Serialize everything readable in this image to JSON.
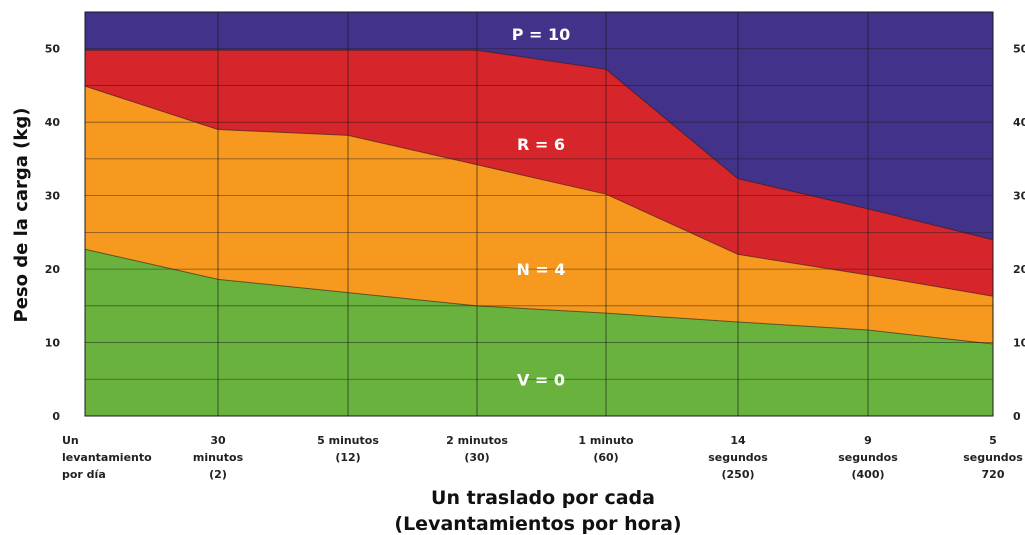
{
  "chart_data": {
    "type": "area",
    "xlabel": "Un traslado por cada",
    "xlabel_sub": "(Levantamientos por hora)",
    "ylabel": "Peso de la carga (kg)",
    "ylim": [
      0,
      55
    ],
    "yticks": [
      0,
      10,
      20,
      30,
      40,
      50
    ],
    "grid": true,
    "categories": [
      [
        "Un",
        "levantamiento",
        "por día"
      ],
      [
        "30",
        "minutos",
        "(2)"
      ],
      [
        "5 minutos",
        "(12)"
      ],
      [
        "2 minutos",
        "(30)"
      ],
      [
        "1 minuto",
        "(60)"
      ],
      [
        "14",
        "segundos",
        "(250)"
      ],
      [
        "9",
        "segundos",
        "(400)"
      ],
      [
        "5",
        "segundos",
        "720"
      ]
    ],
    "series": [
      {
        "name": "V = 0",
        "color": "#6ab23e",
        "values": [
          22.7,
          18.6,
          16.8,
          15.0,
          14.0,
          12.8,
          11.7,
          9.8
        ]
      },
      {
        "name": "N = 4",
        "color": "#f7991f",
        "values": [
          44.9,
          39.0,
          38.2,
          34.2,
          30.2,
          22.0,
          19.2,
          16.3
        ]
      },
      {
        "name": "R = 6",
        "color": "#d7262b",
        "values": [
          49.8,
          49.8,
          49.8,
          49.8,
          47.2,
          32.3,
          28.2,
          24.0
        ]
      },
      {
        "name": "P = 10",
        "color": "#433289",
        "values": [
          55,
          55,
          55,
          55,
          55,
          55,
          55,
          55
        ]
      }
    ],
    "series_label_values": [
      5,
      20,
      37,
      52
    ]
  }
}
